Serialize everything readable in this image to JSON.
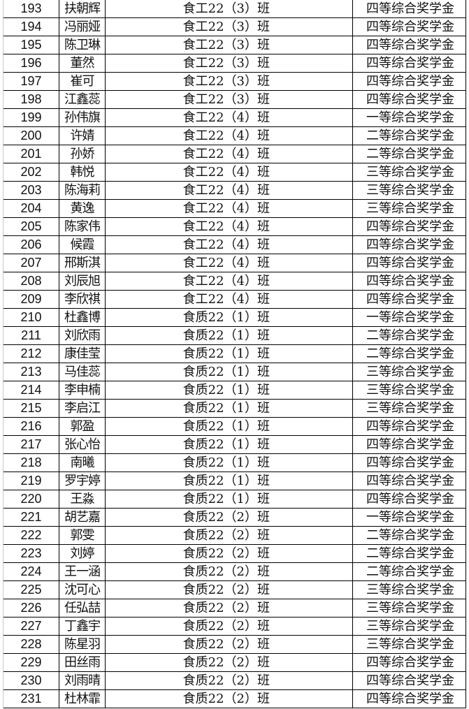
{
  "rows": [
    {
      "no": "193",
      "name": "扶朝辉",
      "class": "食工22（3）班",
      "award": "四等综合奖学金"
    },
    {
      "no": "194",
      "name": "冯丽娅",
      "class": "食工22（3）班",
      "award": "四等综合奖学金"
    },
    {
      "no": "195",
      "name": "陈卫琳",
      "class": "食工22（3）班",
      "award": "四等综合奖学金"
    },
    {
      "no": "196",
      "name": "董然",
      "class": "食工22（3）班",
      "award": "四等综合奖学金"
    },
    {
      "no": "197",
      "name": "崔可",
      "class": "食工22（3）班",
      "award": "四等综合奖学金"
    },
    {
      "no": "198",
      "name": "江鑫蕊",
      "class": "食工22（3）班",
      "award": "四等综合奖学金"
    },
    {
      "no": "199",
      "name": "孙伟旗",
      "class": "食工22（4）班",
      "award": "一等综合奖学金"
    },
    {
      "no": "200",
      "name": "许婧",
      "class": "食工22（4）班",
      "award": "二等综合奖学金"
    },
    {
      "no": "201",
      "name": "孙娇",
      "class": "食工22（4）班",
      "award": "二等综合奖学金"
    },
    {
      "no": "202",
      "name": "韩悦",
      "class": "食工22（4）班",
      "award": "三等综合奖学金"
    },
    {
      "no": "203",
      "name": "陈海莉",
      "class": "食工22（4）班",
      "award": "三等综合奖学金"
    },
    {
      "no": "204",
      "name": "黄逸",
      "class": "食工22（4）班",
      "award": "三等综合奖学金"
    },
    {
      "no": "205",
      "name": "陈家伟",
      "class": "食工22（4）班",
      "award": "四等综合奖学金"
    },
    {
      "no": "206",
      "name": "候霞",
      "class": "食工22（4）班",
      "award": "四等综合奖学金"
    },
    {
      "no": "207",
      "name": "邢斯淇",
      "class": "食工22（4）班",
      "award": "四等综合奖学金"
    },
    {
      "no": "208",
      "name": "刘辰旭",
      "class": "食工22（4）班",
      "award": "四等综合奖学金"
    },
    {
      "no": "209",
      "name": "李欣祺",
      "class": "食工22（4）班",
      "award": "四等综合奖学金"
    },
    {
      "no": "210",
      "name": "杜鑫博",
      "class": "食质22（1）班",
      "award": "一等综合奖学金"
    },
    {
      "no": "211",
      "name": "刘欣雨",
      "class": "食质22（1）班",
      "award": "二等综合奖学金"
    },
    {
      "no": "212",
      "name": "康佳莹",
      "class": "食质22（1）班",
      "award": "二等综合奖学金"
    },
    {
      "no": "213",
      "name": "马佳蕊",
      "class": "食质22（1）班",
      "award": "三等综合奖学金"
    },
    {
      "no": "214",
      "name": "李申楠",
      "class": "食质22（1）班",
      "award": "三等综合奖学金"
    },
    {
      "no": "215",
      "name": "李启江",
      "class": "食质22（1）班",
      "award": "三等综合奖学金"
    },
    {
      "no": "216",
      "name": "郭盈",
      "class": "食质22（1）班",
      "award": "四等综合奖学金"
    },
    {
      "no": "217",
      "name": "张心怡",
      "class": "食质22（1）班",
      "award": "四等综合奖学金"
    },
    {
      "no": "218",
      "name": "南曦",
      "class": "食质22（1）班",
      "award": "四等综合奖学金"
    },
    {
      "no": "219",
      "name": "罗宇婷",
      "class": "食质22（1）班",
      "award": "四等综合奖学金"
    },
    {
      "no": "220",
      "name": "王淼",
      "class": "食质22（1）班",
      "award": "四等综合奖学金"
    },
    {
      "no": "221",
      "name": "胡艺嘉",
      "class": "食质22（2）班",
      "award": "一等综合奖学金"
    },
    {
      "no": "222",
      "name": "郭雯",
      "class": "食质22（2）班",
      "award": "二等综合奖学金"
    },
    {
      "no": "223",
      "name": "刘婷",
      "class": "食质22（2）班",
      "award": "二等综合奖学金"
    },
    {
      "no": "224",
      "name": "王一涵",
      "class": "食质22（2）班",
      "award": "二等综合奖学金"
    },
    {
      "no": "225",
      "name": "沈可心",
      "class": "食质22（2）班",
      "award": "三等综合奖学金"
    },
    {
      "no": "226",
      "name": "任弘喆",
      "class": "食质22（2）班",
      "award": "三等综合奖学金"
    },
    {
      "no": "227",
      "name": "丁鑫宇",
      "class": "食质22（2）班",
      "award": "三等综合奖学金"
    },
    {
      "no": "228",
      "name": "陈星羽",
      "class": "食质22（2）班",
      "award": "三等综合奖学金"
    },
    {
      "no": "229",
      "name": "田丝雨",
      "class": "食质22（2）班",
      "award": "四等综合奖学金"
    },
    {
      "no": "230",
      "name": "刘雨晴",
      "class": "食质22（2）班",
      "award": "四等综合奖学金"
    },
    {
      "no": "231",
      "name": "杜林霏",
      "class": "食质22（2）班",
      "award": "四等综合奖学金"
    }
  ]
}
